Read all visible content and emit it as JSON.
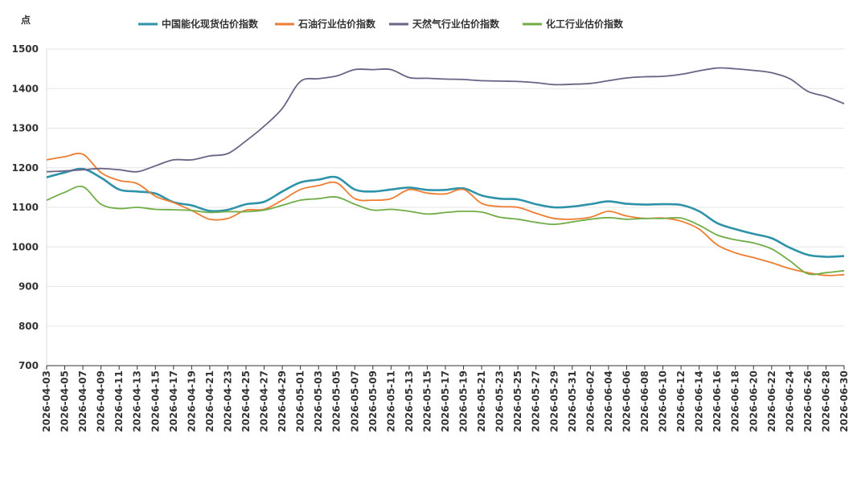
{
  "chart_data": {
    "type": "line",
    "unit_label": "点",
    "ylim": [
      700,
      1500
    ],
    "y_ticks": [
      "1500",
      "1400",
      "1300",
      "1200",
      "1100",
      "1000",
      "900",
      "800",
      "700"
    ],
    "grid": true,
    "legend_position": "top",
    "x": [
      "2026-04-03",
      "2026-04-05",
      "2026-04-07",
      "2026-04-09",
      "2026-04-11",
      "2026-04-13",
      "2026-04-15",
      "2026-04-17",
      "2026-04-19",
      "2026-04-21",
      "2026-04-23",
      "2026-04-25",
      "2026-04-27",
      "2026-04-29",
      "2026-05-01",
      "2026-05-03",
      "2026-05-05",
      "2026-05-07",
      "2026-05-09",
      "2026-05-11",
      "2026-05-13",
      "2026-05-15",
      "2026-05-17",
      "2026-05-19",
      "2026-05-21",
      "2026-05-23",
      "2026-05-25",
      "2026-05-27",
      "2026-05-29",
      "2026-05-31",
      "2026-06-02",
      "2026-06-04",
      "2026-06-06",
      "2026-06-08",
      "2026-06-10",
      "2026-06-12",
      "2026-06-14",
      "2026-06-16",
      "2026-06-18",
      "2026-06-20",
      "2026-06-22",
      "2026-06-24",
      "2026-06-26",
      "2026-06-28",
      "2026-06-30"
    ],
    "series": [
      {
        "name": "中国能化现货估价指数",
        "color": "#2e93a8",
        "values": [
          1176,
          1188,
          1197,
          1175,
          1145,
          1140,
          1135,
          1113,
          1105,
          1091,
          1094,
          1108,
          1114,
          1140,
          1163,
          1170,
          1176,
          1145,
          1140,
          1145,
          1150,
          1144,
          1144,
          1148,
          1130,
          1122,
          1120,
          1108,
          1100,
          1102,
          1108,
          1115,
          1109,
          1107,
          1108,
          1106,
          1090,
          1060,
          1045,
          1033,
          1022,
          998,
          980,
          975,
          977
        ]
      },
      {
        "name": "石油行业估价指数",
        "color": "#ed7d31",
        "values": [
          1220,
          1228,
          1234,
          1188,
          1168,
          1160,
          1128,
          1112,
          1092,
          1070,
          1072,
          1093,
          1095,
          1118,
          1145,
          1155,
          1162,
          1122,
          1118,
          1122,
          1145,
          1136,
          1134,
          1145,
          1110,
          1102,
          1100,
          1085,
          1072,
          1070,
          1075,
          1090,
          1078,
          1072,
          1073,
          1065,
          1045,
          1005,
          985,
          973,
          960,
          945,
          935,
          928,
          930
        ]
      },
      {
        "name": "天然气行业估价指数",
        "color": "#6a6385",
        "values": [
          1190,
          1192,
          1195,
          1198,
          1195,
          1190,
          1205,
          1220,
          1220,
          1230,
          1236,
          1268,
          1305,
          1350,
          1418,
          1425,
          1432,
          1448,
          1448,
          1448,
          1428,
          1426,
          1424,
          1423,
          1420,
          1419,
          1418,
          1415,
          1410,
          1411,
          1413,
          1420,
          1427,
          1430,
          1431,
          1436,
          1445,
          1452,
          1450,
          1446,
          1440,
          1425,
          1393,
          1380,
          1362
        ]
      },
      {
        "name": "化工行业估价指数",
        "color": "#70ad47",
        "values": [
          1118,
          1138,
          1152,
          1108,
          1097,
          1100,
          1095,
          1094,
          1092,
          1087,
          1089,
          1089,
          1093,
          1105,
          1118,
          1122,
          1126,
          1108,
          1093,
          1095,
          1090,
          1083,
          1087,
          1090,
          1088,
          1075,
          1070,
          1062,
          1057,
          1063,
          1070,
          1074,
          1070,
          1072,
          1072,
          1073,
          1055,
          1030,
          1018,
          1010,
          995,
          965,
          932,
          935,
          940
        ]
      }
    ]
  }
}
